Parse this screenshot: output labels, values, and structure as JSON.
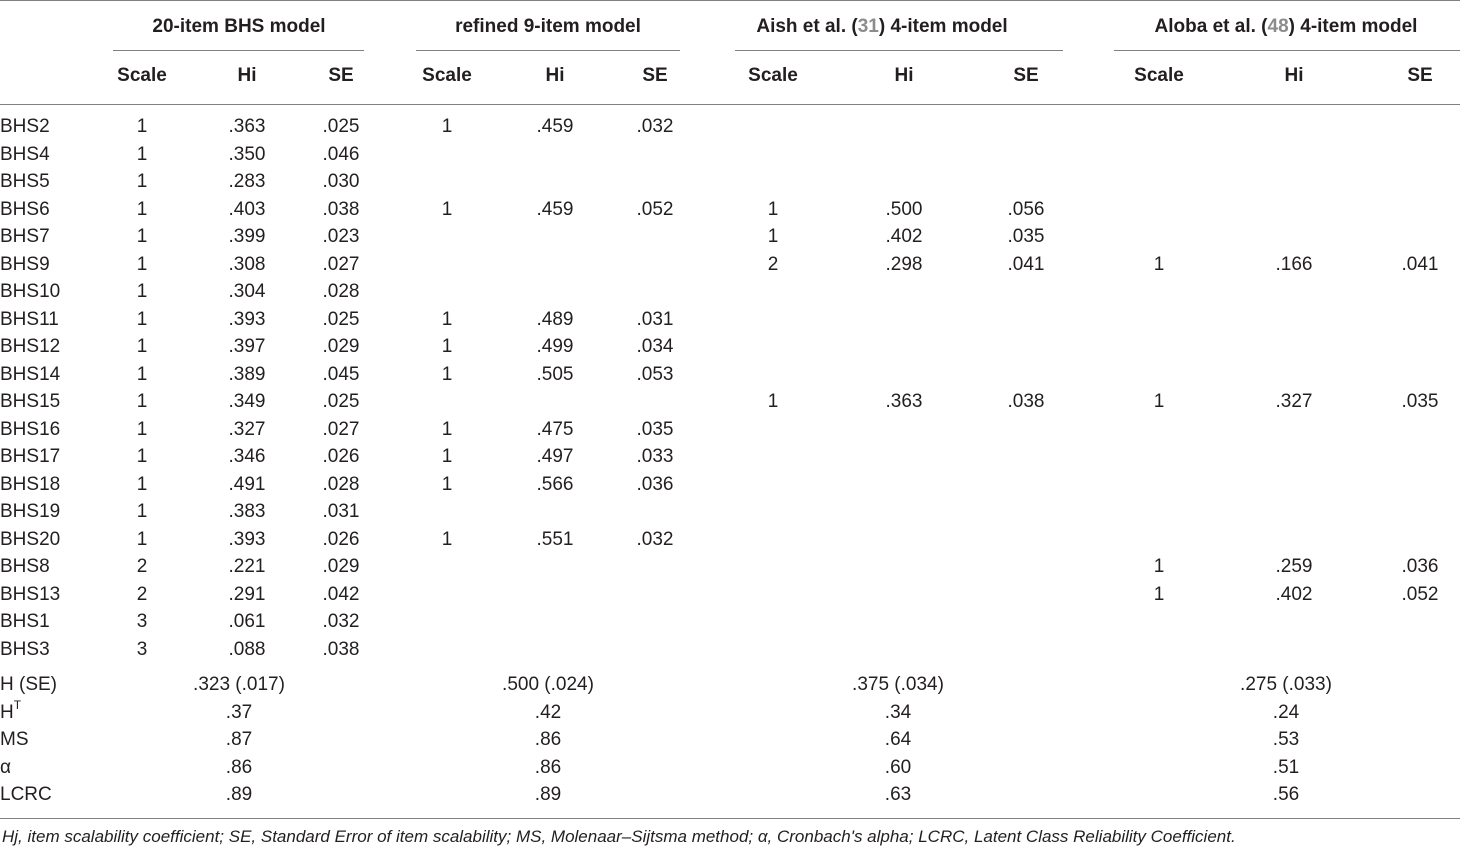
{
  "groups": [
    {
      "prefix": "20-item BHS model",
      "ref": "",
      "suffix": ""
    },
    {
      "prefix": "refined 9-item model",
      "ref": "",
      "suffix": ""
    },
    {
      "prefix": "Aish et al. (",
      "ref": "31",
      "suffix": ") 4-item model"
    },
    {
      "prefix": "Aloba et al. (",
      "ref": "48",
      "suffix": ") 4-item model"
    }
  ],
  "subheaders": [
    "Scale",
    "Hi",
    "SE"
  ],
  "rows": [
    {
      "item": "BHS2",
      "cells": [
        "1",
        ".363",
        ".025",
        "1",
        ".459",
        ".032",
        "",
        "",
        "",
        "",
        "",
        ""
      ]
    },
    {
      "item": "BHS4",
      "cells": [
        "1",
        ".350",
        ".046",
        "",
        "",
        "",
        "",
        "",
        "",
        "",
        "",
        ""
      ]
    },
    {
      "item": "BHS5",
      "cells": [
        "1",
        ".283",
        ".030",
        "",
        "",
        "",
        "",
        "",
        "",
        "",
        "",
        ""
      ]
    },
    {
      "item": "BHS6",
      "cells": [
        "1",
        ".403",
        ".038",
        "1",
        ".459",
        ".052",
        "1",
        ".500",
        ".056",
        "",
        "",
        ""
      ]
    },
    {
      "item": "BHS7",
      "cells": [
        "1",
        ".399",
        ".023",
        "",
        "",
        "",
        "1",
        ".402",
        ".035",
        "",
        "",
        ""
      ]
    },
    {
      "item": "BHS9",
      "cells": [
        "1",
        ".308",
        ".027",
        "",
        "",
        "",
        "2",
        ".298",
        ".041",
        "1",
        ".166",
        ".041"
      ]
    },
    {
      "item": "BHS10",
      "cells": [
        "1",
        ".304",
        ".028",
        "",
        "",
        "",
        "",
        "",
        "",
        "",
        "",
        ""
      ]
    },
    {
      "item": "BHS11",
      "cells": [
        "1",
        ".393",
        ".025",
        "1",
        ".489",
        ".031",
        "",
        "",
        "",
        "",
        "",
        ""
      ]
    },
    {
      "item": "BHS12",
      "cells": [
        "1",
        ".397",
        ".029",
        "1",
        ".499",
        ".034",
        "",
        "",
        "",
        "",
        "",
        ""
      ]
    },
    {
      "item": "BHS14",
      "cells": [
        "1",
        ".389",
        ".045",
        "1",
        ".505",
        ".053",
        "",
        "",
        "",
        "",
        "",
        ""
      ]
    },
    {
      "item": "BHS15",
      "cells": [
        "1",
        ".349",
        ".025",
        "",
        "",
        "",
        "1",
        ".363",
        ".038",
        "1",
        ".327",
        ".035"
      ]
    },
    {
      "item": "BHS16",
      "cells": [
        "1",
        ".327",
        ".027",
        "1",
        ".475",
        ".035",
        "",
        "",
        "",
        "",
        "",
        ""
      ]
    },
    {
      "item": "BHS17",
      "cells": [
        "1",
        ".346",
        ".026",
        "1",
        ".497",
        ".033",
        "",
        "",
        "",
        "",
        "",
        ""
      ]
    },
    {
      "item": "BHS18",
      "cells": [
        "1",
        ".491",
        ".028",
        "1",
        ".566",
        ".036",
        "",
        "",
        "",
        "",
        "",
        ""
      ]
    },
    {
      "item": "BHS19",
      "cells": [
        "1",
        ".383",
        ".031",
        "",
        "",
        "",
        "",
        "",
        "",
        "",
        "",
        ""
      ]
    },
    {
      "item": "BHS20",
      "cells": [
        "1",
        ".393",
        ".026",
        "1",
        ".551",
        ".032",
        "",
        "",
        "",
        "",
        "",
        ""
      ]
    },
    {
      "item": "BHS8",
      "cells": [
        "2",
        ".221",
        ".029",
        "",
        "",
        "",
        "",
        "",
        "",
        "1",
        ".259",
        ".036"
      ]
    },
    {
      "item": "BHS13",
      "cells": [
        "2",
        ".291",
        ".042",
        "",
        "",
        "",
        "",
        "",
        "",
        "1",
        ".402",
        ".052"
      ]
    },
    {
      "item": "BHS1",
      "cells": [
        "3",
        ".061",
        ".032",
        "",
        "",
        "",
        "",
        "",
        "",
        "",
        "",
        ""
      ]
    },
    {
      "item": "BHS3",
      "cells": [
        "3",
        ".088",
        ".038",
        "",
        "",
        "",
        "",
        "",
        "",
        "",
        "",
        ""
      ]
    }
  ],
  "summary": [
    {
      "label": "H (SE)",
      "sup": "",
      "values": [
        ".323 (.017)",
        ".500 (.024)",
        ".375 (.034)",
        ".275 (.033)"
      ]
    },
    {
      "label": "H",
      "sup": "T",
      "values": [
        ".37",
        ".42",
        ".34",
        ".24"
      ]
    },
    {
      "label": "MS",
      "sup": "",
      "values": [
        ".87",
        ".86",
        ".64",
        ".53"
      ]
    },
    {
      "label": "α",
      "sup": "",
      "values": [
        ".86",
        ".86",
        ".60",
        ".51"
      ]
    },
    {
      "label": "LCRC",
      "sup": "",
      "values": [
        ".89",
        ".89",
        ".63",
        ".56"
      ]
    }
  ],
  "footnote": "Hj, item scalability coefficient; SE, Standard Error of item scalability; MS, Molenaar–Sijtsma method; α, Cronbach's alpha; LCRC, Latent Class Reliability Coefficient."
}
